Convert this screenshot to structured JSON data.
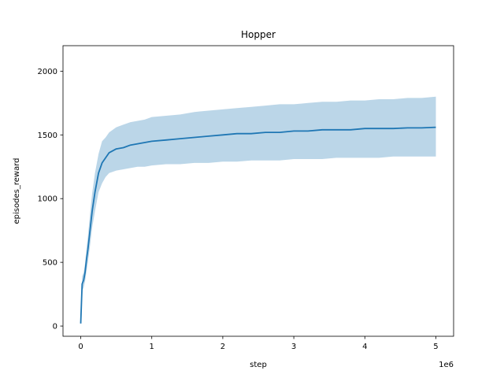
{
  "chart_data": {
    "type": "line",
    "title": "Hopper",
    "xlabel": "step",
    "ylabel": "episodes_reward",
    "x_offset_label": "1e6",
    "x_scale": 1000000,
    "xlim": [
      -250000,
      5250000
    ],
    "ylim": [
      -80,
      2200
    ],
    "x_ticks": [
      0,
      1000000,
      2000000,
      3000000,
      4000000,
      5000000
    ],
    "x_tick_labels": [
      "0",
      "1",
      "2",
      "3",
      "4",
      "5"
    ],
    "y_ticks": [
      0,
      500,
      1000,
      1500,
      2000
    ],
    "y_tick_labels": [
      "0",
      "500",
      "1000",
      "1500",
      "2000"
    ],
    "grid": false,
    "colors": {
      "line": "#1f77b4",
      "band": "#1f77b4"
    },
    "series": [
      {
        "x": [
          0,
          20000,
          40000,
          60000,
          80000,
          100000,
          130000,
          160000,
          200000,
          250000,
          300000,
          350000,
          400000,
          500000,
          600000,
          700000,
          800000,
          900000,
          1000000,
          1200000,
          1400000,
          1600000,
          1800000,
          2000000,
          2200000,
          2400000,
          2600000,
          2800000,
          3000000,
          3200000,
          3400000,
          3600000,
          3800000,
          4000000,
          4200000,
          4400000,
          4600000,
          4800000,
          5000000
        ],
        "y": [
          20,
          330,
          360,
          420,
          520,
          600,
          750,
          900,
          1050,
          1200,
          1280,
          1320,
          1360,
          1390,
          1400,
          1420,
          1430,
          1440,
          1450,
          1460,
          1470,
          1480,
          1490,
          1500,
          1510,
          1510,
          1520,
          1520,
          1530,
          1530,
          1540,
          1540,
          1540,
          1550,
          1550,
          1550,
          1555,
          1555,
          1560
        ],
        "y_lower": [
          15,
          280,
          300,
          350,
          430,
          500,
          630,
          770,
          900,
          1050,
          1120,
          1170,
          1200,
          1220,
          1230,
          1240,
          1250,
          1250,
          1260,
          1270,
          1270,
          1280,
          1280,
          1290,
          1290,
          1300,
          1300,
          1300,
          1310,
          1310,
          1310,
          1320,
          1320,
          1320,
          1320,
          1330,
          1330,
          1330,
          1330
        ],
        "y_upper": [
          25,
          390,
          420,
          490,
          610,
          700,
          880,
          1040,
          1200,
          1350,
          1450,
          1480,
          1520,
          1560,
          1580,
          1600,
          1610,
          1620,
          1640,
          1650,
          1660,
          1680,
          1690,
          1700,
          1710,
          1720,
          1730,
          1740,
          1740,
          1750,
          1760,
          1760,
          1770,
          1770,
          1780,
          1780,
          1790,
          1790,
          1800
        ]
      }
    ]
  }
}
